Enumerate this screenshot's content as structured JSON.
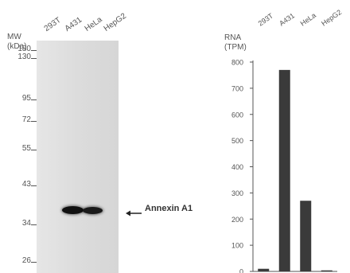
{
  "western_blot": {
    "mw_title_line1": "MW",
    "mw_title_line2": "(kDa)",
    "markers": [
      "180",
      "130",
      "95",
      "72",
      "55",
      "43",
      "34",
      "26"
    ],
    "lanes": [
      "293T",
      "A431",
      "HeLa",
      "HepG2"
    ],
    "band_label": "Annexin A1"
  },
  "chart_data": {
    "type": "bar",
    "title_line1": "RNA",
    "title_line2": "(TPM)",
    "categories": [
      "293T",
      "A431",
      "HeLa",
      "HepG2"
    ],
    "values": [
      10,
      770,
      270,
      4
    ],
    "ylim": [
      0,
      800
    ],
    "yticks": [
      "0",
      "100",
      "200",
      "300",
      "400",
      "500",
      "600",
      "700",
      "800"
    ],
    "bar_color": "#3a3a3a",
    "grid": false
  }
}
